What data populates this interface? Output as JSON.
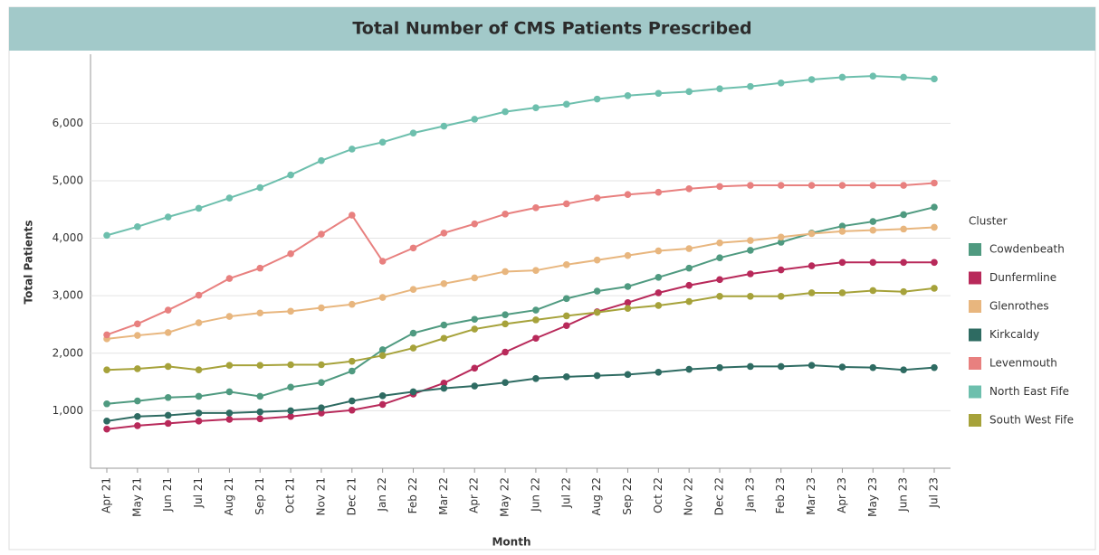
{
  "chart_data": {
    "type": "line",
    "title": "Total Number of CMS Patients Prescribed",
    "x_label": "Month",
    "y_label": "Total Patients",
    "legend_title": "Cluster",
    "legend": "right",
    "grid": true,
    "categories": [
      "Apr 21",
      "May 21",
      "Jun 21",
      "Jul 21",
      "Aug 21",
      "Sep 21",
      "Oct 21",
      "Nov 21",
      "Dec 21",
      "Jan 22",
      "Feb 22",
      "Mar 22",
      "Apr 22",
      "May 22",
      "Jun 22",
      "Jul 22",
      "Aug 22",
      "Sep 22",
      "Oct 22",
      "Nov 22",
      "Dec 22",
      "Jan 23",
      "Feb 23",
      "Mar 23",
      "Apr 23",
      "May 23",
      "Jun 23",
      "Jul 23"
    ],
    "ylim": [
      0,
      7200
    ],
    "yticks": [
      {
        "value": 1000,
        "label": "1,000"
      },
      {
        "value": 2000,
        "label": "2,000"
      },
      {
        "value": 3000,
        "label": "3,000"
      },
      {
        "value": 4000,
        "label": "4,000"
      },
      {
        "value": 5000,
        "label": "5,000"
      },
      {
        "value": 6000,
        "label": "6,000"
      }
    ],
    "series": [
      {
        "name": "Cowdenbeath",
        "color": "#4f9a80",
        "values": [
          1120,
          1170,
          1230,
          1250,
          1330,
          1250,
          1410,
          1490,
          1690,
          2060,
          2350,
          2490,
          2590,
          2670,
          2750,
          2950,
          3080,
          3160,
          3320,
          3480,
          3660,
          3790,
          3930,
          4090,
          4210,
          4290,
          4410,
          4540
        ]
      },
      {
        "name": "Dunfermline",
        "color": "#b8295a",
        "values": [
          680,
          740,
          780,
          820,
          850,
          860,
          900,
          960,
          1010,
          1110,
          1290,
          1480,
          1740,
          2020,
          2260,
          2480,
          2720,
          2880,
          3050,
          3180,
          3280,
          3380,
          3450,
          3520,
          3580,
          3580,
          3580,
          3580
        ]
      },
      {
        "name": "Glenrothes",
        "color": "#e8b67e",
        "values": [
          2250,
          2310,
          2360,
          2530,
          2640,
          2700,
          2730,
          2790,
          2850,
          2970,
          3110,
          3210,
          3310,
          3420,
          3440,
          3540,
          3620,
          3700,
          3780,
          3820,
          3920,
          3960,
          4020,
          4080,
          4120,
          4140,
          4160,
          4190
        ]
      },
      {
        "name": "Kirkcaldy",
        "color": "#2e6b62",
        "values": [
          820,
          900,
          920,
          960,
          960,
          980,
          1000,
          1050,
          1170,
          1260,
          1330,
          1390,
          1430,
          1490,
          1560,
          1590,
          1610,
          1630,
          1670,
          1720,
          1750,
          1770,
          1770,
          1790,
          1760,
          1750,
          1710,
          1750
        ]
      },
      {
        "name": "Levenmouth",
        "color": "#e8807f",
        "values": [
          2320,
          2510,
          2750,
          3010,
          3300,
          3480,
          3730,
          4070,
          4400,
          3600,
          3830,
          4090,
          4250,
          4420,
          4530,
          4600,
          4700,
          4760,
          4800,
          4860,
          4900,
          4920,
          4920,
          4920,
          4920,
          4920,
          4920,
          4960
        ]
      },
      {
        "name": "North East Fife",
        "color": "#6dbfad",
        "values": [
          4050,
          4200,
          4370,
          4520,
          4700,
          4880,
          5100,
          5350,
          5550,
          5670,
          5830,
          5950,
          6070,
          6200,
          6270,
          6330,
          6420,
          6480,
          6520,
          6550,
          6600,
          6640,
          6700,
          6760,
          6800,
          6820,
          6800,
          6770
        ]
      },
      {
        "name": "South West Fife",
        "color": "#a6a23a",
        "values": [
          1710,
          1730,
          1770,
          1710,
          1790,
          1790,
          1800,
          1800,
          1860,
          1960,
          2090,
          2260,
          2420,
          2510,
          2580,
          2650,
          2710,
          2780,
          2830,
          2900,
          2990,
          2990,
          2990,
          3050,
          3050,
          3090,
          3070,
          3130
        ]
      }
    ]
  }
}
